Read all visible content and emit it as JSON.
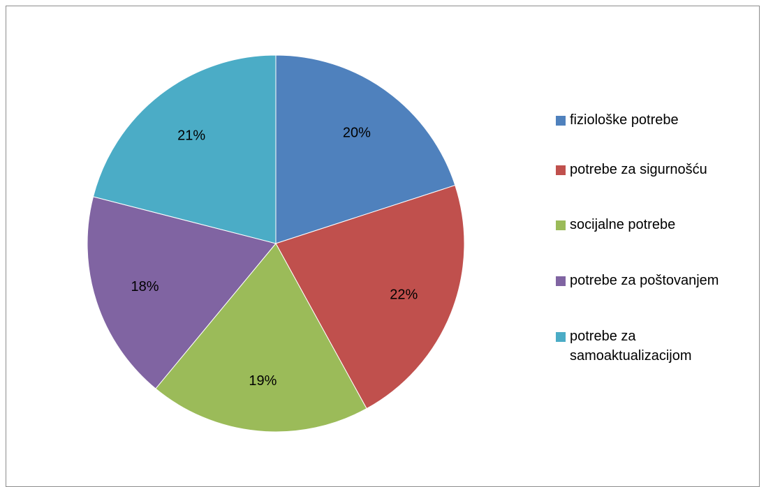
{
  "chart_data": {
    "type": "pie",
    "categories": [
      "fiziološke potrebe",
      "potrebe za sigurnošću",
      "socijalne potrebe",
      "potrebe za poštovanjem",
      "potrebe za samoaktualizacijom"
    ],
    "values": [
      20,
      22,
      19,
      18,
      21
    ],
    "data_labels": [
      "20%",
      "22%",
      "19%",
      "18%",
      "21%"
    ],
    "colors": [
      "#4f81bd",
      "#c0504d",
      "#9bbb59",
      "#8064a2",
      "#4bacc6"
    ],
    "start_angle": "12 o'clock",
    "direction": "clockwise",
    "legend_placement": "right"
  }
}
